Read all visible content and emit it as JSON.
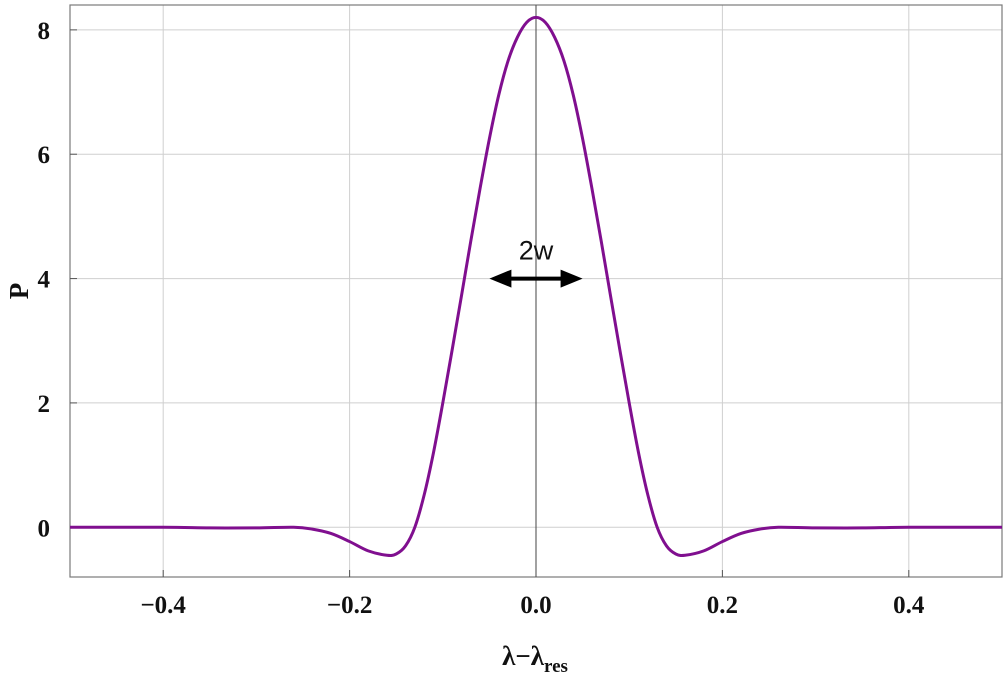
{
  "chart_data": {
    "type": "line",
    "title": "",
    "xlabel": {
      "main": "λ−λ",
      "sub": "res"
    },
    "ylabel": "P",
    "xlim": [
      -0.5,
      0.5
    ],
    "ylim": [
      -0.8,
      8.4
    ],
    "xticks": [
      -0.4,
      -0.2,
      0.0,
      0.2,
      0.4
    ],
    "xtick_labels": [
      "−0.4",
      "−0.2",
      "0.0",
      "0.2",
      "0.4"
    ],
    "yticks": [
      0,
      2,
      4,
      6,
      8
    ],
    "ytick_labels": [
      "0",
      "2",
      "4",
      "6",
      "8"
    ],
    "grid": true,
    "series": [
      {
        "color": "#800f8f",
        "x": [
          -0.5,
          -0.4,
          -0.35,
          -0.3,
          -0.26,
          -0.24,
          -0.22,
          -0.2,
          -0.18,
          -0.16,
          -0.15,
          -0.14,
          -0.13,
          -0.12,
          -0.11,
          -0.1,
          -0.09,
          -0.08,
          -0.07,
          -0.06,
          -0.05,
          -0.04,
          -0.03,
          -0.02,
          -0.01,
          0.0,
          0.01,
          0.02,
          0.03,
          0.04,
          0.05,
          0.06,
          0.07,
          0.08,
          0.09,
          0.1,
          0.11,
          0.12,
          0.13,
          0.14,
          0.15,
          0.16,
          0.18,
          0.2,
          0.22,
          0.24,
          0.26,
          0.3,
          0.35,
          0.4,
          0.5
        ],
        "y": [
          0.0,
          0.0,
          -0.01,
          -0.01,
          0.0,
          -0.03,
          -0.1,
          -0.23,
          -0.38,
          -0.45,
          -0.43,
          -0.3,
          0.0,
          0.52,
          1.2,
          2.0,
          2.85,
          3.72,
          4.6,
          5.45,
          6.25,
          6.95,
          7.5,
          7.88,
          8.12,
          8.2,
          8.12,
          7.88,
          7.5,
          6.95,
          6.25,
          5.45,
          4.6,
          3.72,
          2.85,
          2.0,
          1.2,
          0.52,
          0.0,
          -0.3,
          -0.43,
          -0.45,
          -0.38,
          -0.23,
          -0.1,
          -0.03,
          0.0,
          -0.01,
          -0.01,
          0.0,
          0.0
        ]
      }
    ],
    "annotations": [
      {
        "text": "2w",
        "arrow_from": -0.05,
        "arrow_to": 0.05,
        "y": 4.0,
        "double_headed": true
      }
    ]
  }
}
